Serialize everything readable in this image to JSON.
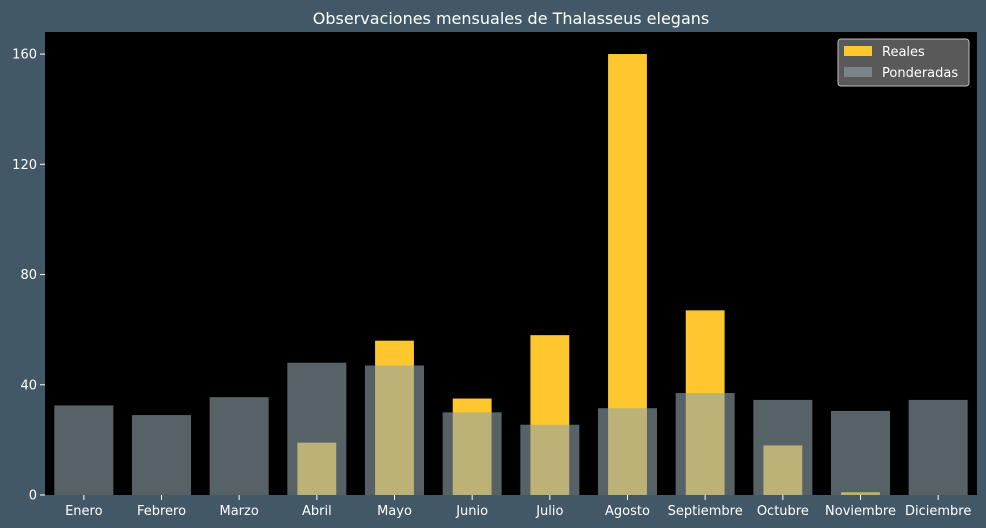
{
  "chart_data": {
    "type": "bar",
    "title": "Observaciones mensuales de Thalasseus elegans",
    "xlabel": "",
    "ylabel": "",
    "categories": [
      "Enero",
      "Febrero",
      "Marzo",
      "Abril",
      "Mayo",
      "Junio",
      "Julio",
      "Agosto",
      "Septiembre",
      "Octubre",
      "Noviembre",
      "Diciembre"
    ],
    "series": [
      {
        "name": "Reales",
        "color": "#ffc72e",
        "values": [
          0,
          0,
          0,
          19,
          56,
          35,
          58,
          160,
          67,
          18,
          1,
          0
        ]
      },
      {
        "name": "Ponderadas",
        "color": "#8fa3a9",
        "opacity": 0.6,
        "values": [
          32.5,
          29,
          35.5,
          48,
          47,
          30,
          25.5,
          31.5,
          37,
          34.5,
          30.5,
          34.5
        ]
      }
    ],
    "ylim": [
      0,
      168
    ],
    "yticks": [
      0,
      40,
      80,
      120,
      160
    ],
    "grid": false,
    "legend": "top-right",
    "colors": {
      "page_background": "#425866",
      "plot_background": "#000000",
      "text": "#ffffff",
      "legend_background": "#595959"
    }
  }
}
